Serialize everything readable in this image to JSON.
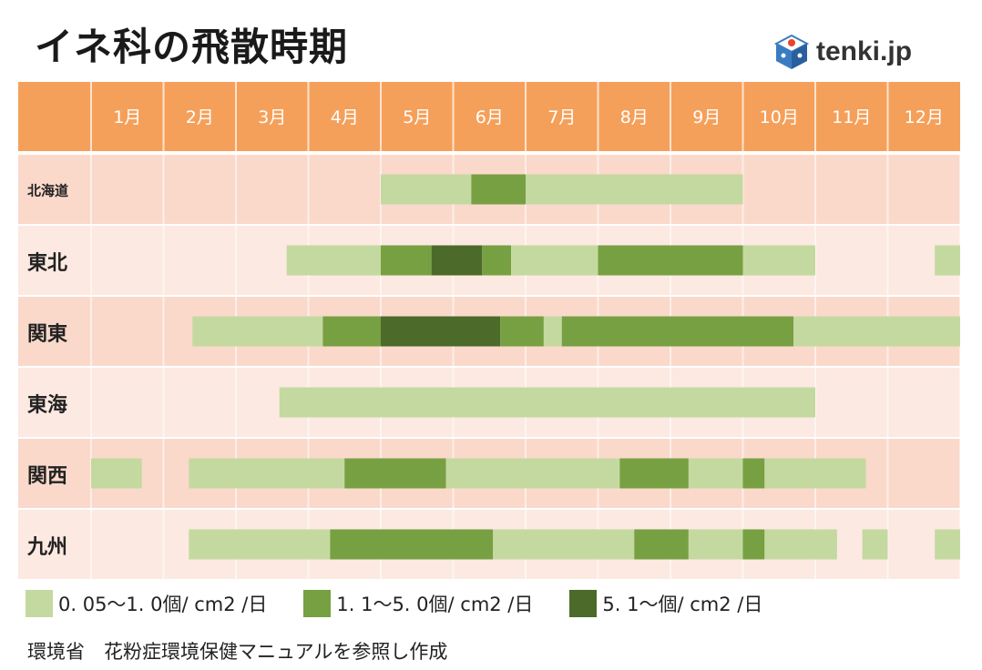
{
  "title": "イネ科の飛散時期",
  "logo": {
    "text": "tenki.jp",
    "icon": "tenki-cube-icon"
  },
  "source": "環境省　花粉症環境保健マニュアルを参照し作成",
  "colors": {
    "header_bg": "#f5a05a",
    "row_odd": "#fad9cb",
    "row_even": "#fce9e1",
    "level1": "#c4d9a0",
    "level2": "#77a042",
    "level3": "#4c6a2a"
  },
  "chart_data": {
    "type": "table",
    "months": [
      "1月",
      "2月",
      "3月",
      "4月",
      "5月",
      "6月",
      "7月",
      "8月",
      "9月",
      "10月",
      "11月",
      "12月"
    ],
    "month_range": [
      1,
      13
    ],
    "legend": [
      {
        "label": "0. 05～1. 0個/ cm2 /日",
        "level": 1
      },
      {
        "label": "1. 1～5. 0個/ cm2 /日",
        "level": 2
      },
      {
        "label": "5. 1～個/ cm2 /日",
        "level": 3
      }
    ],
    "regions": [
      {
        "name": "北海道",
        "periods": [
          {
            "start": 5.0,
            "end": 6.25,
            "level": 1
          },
          {
            "start": 6.25,
            "end": 7.0,
            "level": 2
          },
          {
            "start": 7.0,
            "end": 10.0,
            "level": 1
          }
        ]
      },
      {
        "name": "東北",
        "periods": [
          {
            "start": 3.7,
            "end": 5.0,
            "level": 1
          },
          {
            "start": 5.0,
            "end": 5.7,
            "level": 2
          },
          {
            "start": 5.7,
            "end": 6.4,
            "level": 3
          },
          {
            "start": 6.4,
            "end": 6.8,
            "level": 2
          },
          {
            "start": 6.8,
            "end": 8.0,
            "level": 1
          },
          {
            "start": 8.0,
            "end": 10.0,
            "level": 2
          },
          {
            "start": 10.0,
            "end": 11.0,
            "level": 1
          },
          {
            "start": 12.65,
            "end": 13.0,
            "level": 1
          }
        ]
      },
      {
        "name": "関東",
        "periods": [
          {
            "start": 2.4,
            "end": 4.2,
            "level": 1
          },
          {
            "start": 4.2,
            "end": 5.0,
            "level": 2
          },
          {
            "start": 5.0,
            "end": 6.65,
            "level": 3
          },
          {
            "start": 6.65,
            "end": 7.25,
            "level": 2
          },
          {
            "start": 7.25,
            "end": 7.5,
            "level": 1
          },
          {
            "start": 7.5,
            "end": 10.7,
            "level": 2
          },
          {
            "start": 10.7,
            "end": 13.0,
            "level": 1
          }
        ]
      },
      {
        "name": "東海",
        "periods": [
          {
            "start": 3.6,
            "end": 11.0,
            "level": 1
          }
        ]
      },
      {
        "name": "関西",
        "periods": [
          {
            "start": 1.0,
            "end": 1.7,
            "level": 1
          },
          {
            "start": 2.35,
            "end": 4.5,
            "level": 1
          },
          {
            "start": 4.5,
            "end": 5.9,
            "level": 2
          },
          {
            "start": 5.9,
            "end": 8.3,
            "level": 1
          },
          {
            "start": 8.3,
            "end": 9.25,
            "level": 2
          },
          {
            "start": 9.25,
            "end": 10.0,
            "level": 1
          },
          {
            "start": 10.0,
            "end": 10.3,
            "level": 2
          },
          {
            "start": 10.3,
            "end": 11.7,
            "level": 1
          }
        ]
      },
      {
        "name": "九州",
        "periods": [
          {
            "start": 2.35,
            "end": 4.3,
            "level": 1
          },
          {
            "start": 4.3,
            "end": 6.55,
            "level": 2
          },
          {
            "start": 6.55,
            "end": 8.5,
            "level": 1
          },
          {
            "start": 8.5,
            "end": 9.25,
            "level": 2
          },
          {
            "start": 9.25,
            "end": 10.0,
            "level": 1
          },
          {
            "start": 10.0,
            "end": 10.3,
            "level": 2
          },
          {
            "start": 10.3,
            "end": 11.3,
            "level": 1
          },
          {
            "start": 11.65,
            "end": 12.0,
            "level": 1
          },
          {
            "start": 12.65,
            "end": 13.0,
            "level": 1
          }
        ]
      }
    ]
  }
}
